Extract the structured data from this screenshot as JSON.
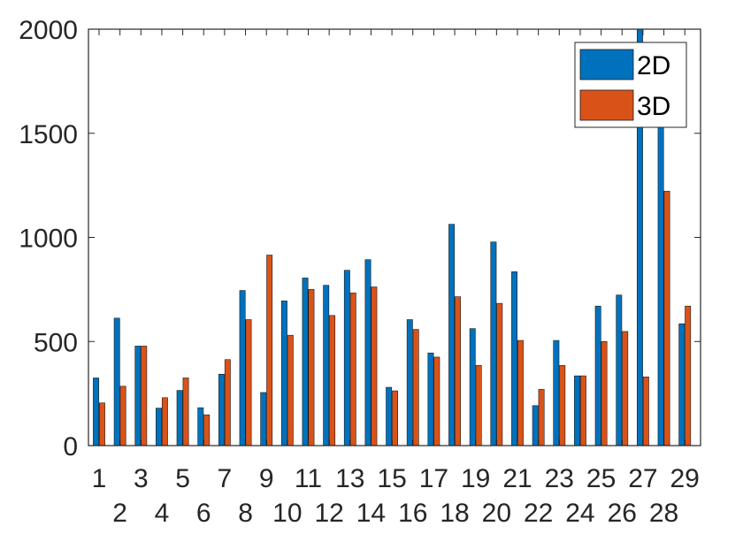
{
  "chart_data": {
    "type": "bar",
    "categories": [
      "1",
      "2",
      "3",
      "4",
      "5",
      "6",
      "7",
      "8",
      "9",
      "10",
      "11",
      "12",
      "13",
      "14",
      "15",
      "16",
      "17",
      "18",
      "19",
      "20",
      "21",
      "22",
      "23",
      "24",
      "25",
      "26",
      "27",
      "28",
      "29"
    ],
    "series": [
      {
        "name": "2D",
        "color": "#0072BD",
        "values": [
          325,
          612,
          478,
          180,
          265,
          182,
          343,
          745,
          255,
          695,
          805,
          770,
          842,
          893,
          280,
          605,
          445,
          1063,
          562,
          978,
          835,
          192,
          505,
          335,
          670,
          723,
          2000,
          1600,
          585
        ]
      },
      {
        "name": "3D",
        "color": "#D95319",
        "values": [
          205,
          285,
          478,
          230,
          325,
          148,
          413,
          605,
          915,
          530,
          750,
          625,
          733,
          762,
          263,
          558,
          425,
          715,
          385,
          683,
          505,
          270,
          385,
          335,
          500,
          548,
          330,
          1222,
          670
        ]
      }
    ],
    "ylim": [
      0,
      2000
    ],
    "yticks": [
      0,
      500,
      1000,
      1500,
      2000
    ],
    "grid": false,
    "legend_position": "top-right"
  }
}
